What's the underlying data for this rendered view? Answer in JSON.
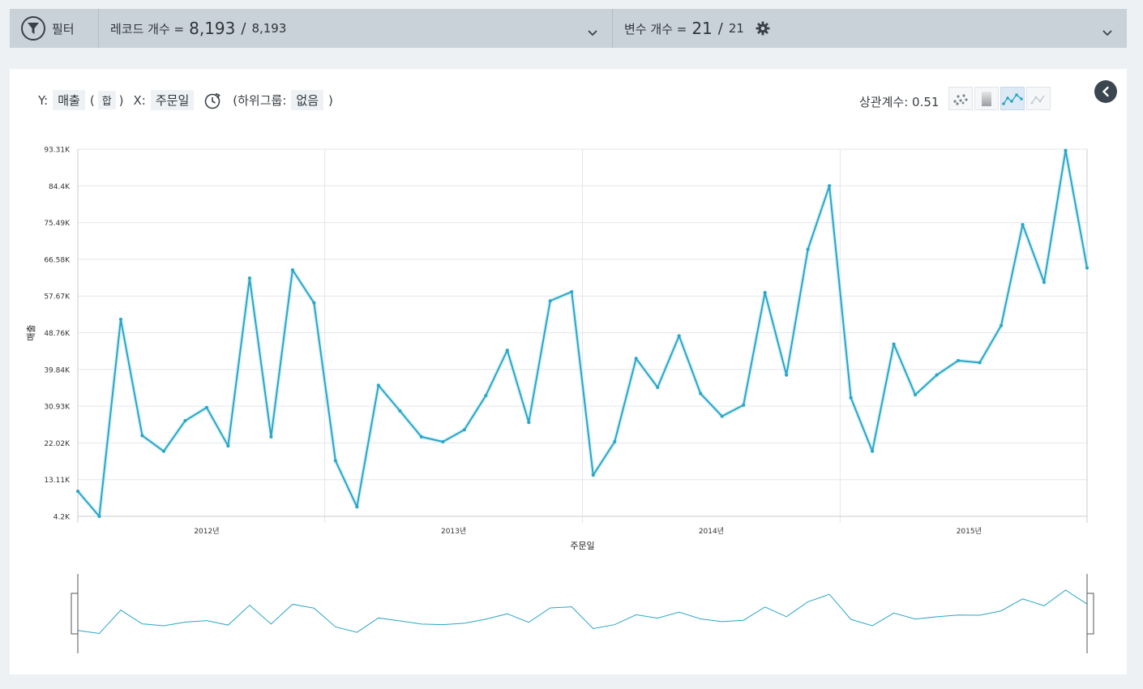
{
  "filter_bar": {
    "filter_label": "필터",
    "records_label": "레코드 개수 =",
    "records_shown": "8,193",
    "records_total": "8,193",
    "vars_label": "변수 개수 =",
    "vars_shown": "21",
    "vars_total": "21",
    "separator": "/"
  },
  "controls": {
    "y_label": "Y:",
    "y_value": "매출",
    "open_paren": "(",
    "agg_value": "합",
    "close_paren": ")",
    "x_label": "X:",
    "x_value": "주문일",
    "subgroup_label": "(하위그룹:",
    "subgroup_value": "없음",
    "subgroup_close": ")"
  },
  "correlation": {
    "label": "상관계수: 0.51"
  },
  "view_modes": [
    {
      "icon": "scatter-icon",
      "active": false
    },
    {
      "icon": "bar-icon",
      "active": false
    },
    {
      "icon": "line-icon",
      "active": true
    },
    {
      "icon": "area-icon",
      "active": false
    }
  ],
  "colors": {
    "series": "#2aa5c4",
    "grid": "#e3e6e9",
    "axis": "#c8ccd0"
  },
  "chart_data": {
    "type": "line",
    "ylabel": "매출",
    "xlabel": "주문일",
    "ylim": [
      4200,
      93310
    ],
    "yticks": [
      "4.2K",
      "13.11K",
      "22.02K",
      "30.93K",
      "39.84K",
      "48.76K",
      "57.67K",
      "66.58K",
      "75.49K",
      "84.4K",
      "93.31K"
    ],
    "xticks": [
      {
        "label": "2012년",
        "pos": 6
      },
      {
        "label": "2013년",
        "pos": 17.5
      },
      {
        "label": "2014년",
        "pos": 29.5
      },
      {
        "label": "2015년",
        "pos": 41.5
      }
    ],
    "year_boundaries": [
      11.5,
      23.5,
      35.5
    ],
    "x_range": [
      0,
      47
    ],
    "series": [
      {
        "values": [
          10300,
          4200,
          52000,
          23800,
          20000,
          27400,
          30600,
          21300,
          62000,
          23500,
          64000,
          56000,
          17700,
          6500,
          36000,
          29800,
          23500,
          22300,
          25200,
          33500,
          44500,
          27000,
          56500,
          58700,
          14200,
          22300,
          42500,
          35500,
          48000,
          34000,
          28500,
          31200,
          58500,
          38500,
          69000,
          84400,
          33000,
          20000,
          46000,
          33700,
          38500,
          42000,
          41500,
          50500,
          75000,
          61000,
          93000,
          64500
        ]
      }
    ]
  }
}
